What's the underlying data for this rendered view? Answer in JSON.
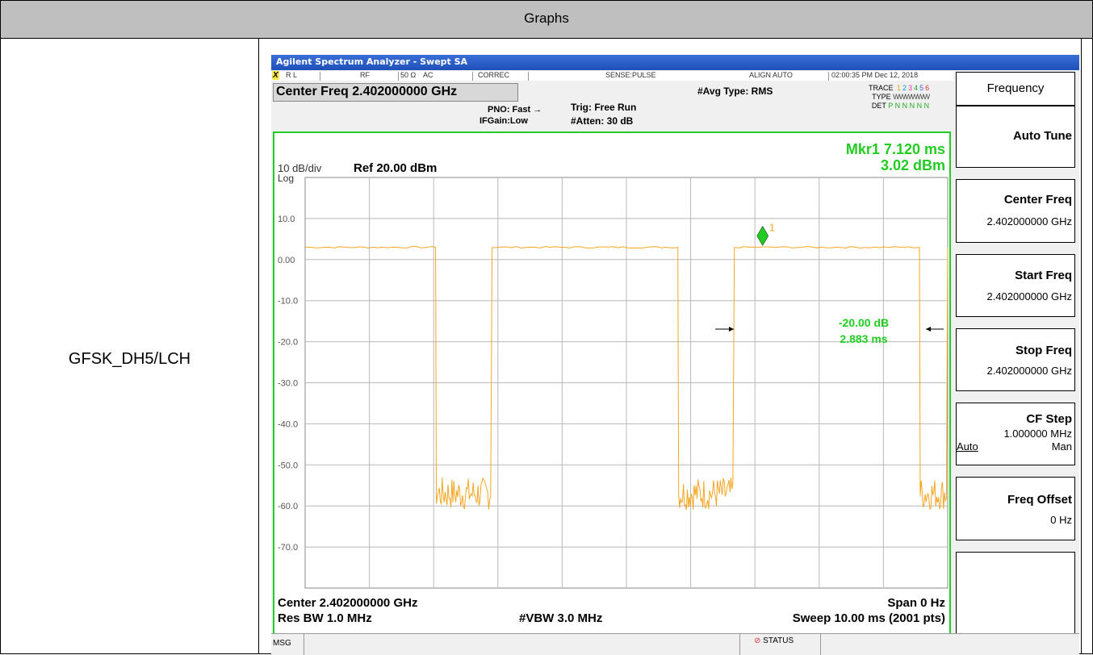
{
  "table": {
    "header": "Graphs",
    "row_label": "GFSK_DH5/LCH"
  },
  "window": {
    "title": "Agilent Spectrum Analyzer - Swept SA",
    "status": {
      "rl": "R L",
      "rf": "RF",
      "impedance": "50 Ω",
      "ac": "AC",
      "correc": "CORREC",
      "sense": "SENSE:PULSE",
      "align": "ALIGN AUTO",
      "datetime": "02:00:35 PM Dec 12, 2018"
    },
    "center_freq_banner": "Center Freq 2.402000000 GHz",
    "pno": "PNO: Fast",
    "ifgain": "IFGain:Low",
    "trig": "Trig: Free Run",
    "atten": "#Atten: 30 dB",
    "avg_type": "#Avg Type: RMS",
    "trace_label": "TRACE",
    "trace_nums": [
      "1",
      "2",
      "3",
      "4",
      "5",
      "6"
    ],
    "type_label": "TYPE",
    "type_value": "WWWWWW",
    "det_label": "DET",
    "det_value": "P N N N N N"
  },
  "chart_data": {
    "type": "line",
    "scale": "10 dB/div",
    "log_label": "Log",
    "ref_level": "Ref 20.00 dBm",
    "marker_readout": "Mkr1 7.120 ms",
    "marker_value": "3.02 dBm",
    "marker_id": "1",
    "marker": {
      "x_ms": 7.12,
      "y_dbm": 3.02
    },
    "ylim": [
      -80,
      20
    ],
    "xlim_ms": [
      0,
      10
    ],
    "y_ticks": [
      "10.0",
      "0.00",
      "-10.0",
      "-20.0",
      "-30.0",
      "-40.0",
      "-50.0",
      "-60.0",
      "-70.0"
    ],
    "y_tick_values": [
      10,
      0,
      -10,
      -20,
      -30,
      -40,
      -50,
      -60,
      -70
    ],
    "grid": true,
    "series": [
      {
        "color": "#f5a623",
        "segments": [
          {
            "from_ms": 0.0,
            "to_ms": 2.03,
            "level": "on"
          },
          {
            "from_ms": 2.03,
            "to_ms": 2.91,
            "level": "off"
          },
          {
            "from_ms": 2.91,
            "to_ms": 5.8,
            "level": "on"
          },
          {
            "from_ms": 5.8,
            "to_ms": 6.68,
            "level": "off"
          },
          {
            "from_ms": 6.68,
            "to_ms": 9.56,
            "level": "on"
          },
          {
            "from_ms": 9.56,
            "to_ms": 10.0,
            "level": "off"
          }
        ],
        "on_level_dbm": 3.0,
        "off_level_dbm": -57.0
      }
    ],
    "delta_annotation": {
      "line1": "-20.00 dB",
      "line2": "2.883 ms"
    },
    "footer": {
      "center": "Center 2.402000000 GHz",
      "span": "Span 0 Hz",
      "res_bw": "Res BW 1.0 MHz",
      "vbw": "#VBW 3.0 MHz",
      "sweep": "Sweep  10.00 ms (2001 pts)"
    }
  },
  "softkeys": {
    "menu_title": "Frequency",
    "auto_tune": "Auto Tune",
    "center_freq": {
      "label": "Center Freq",
      "value": "2.402000000 GHz"
    },
    "start_freq": {
      "label": "Start Freq",
      "value": "2.402000000 GHz"
    },
    "stop_freq": {
      "label": "Stop Freq",
      "value": "2.402000000 GHz"
    },
    "cf_step": {
      "label": "CF Step",
      "value": "1.000000 MHz",
      "auto": "Auto",
      "man": "Man"
    },
    "freq_offset": {
      "label": "Freq Offset",
      "value": "0 Hz"
    }
  },
  "msgbar": {
    "msg": "MSG",
    "status": "STATUS"
  },
  "colors": {
    "trace": "#f5a623",
    "screen_border": "#22cc22",
    "marker": "#22cc22",
    "annotation": "#22cc22"
  }
}
